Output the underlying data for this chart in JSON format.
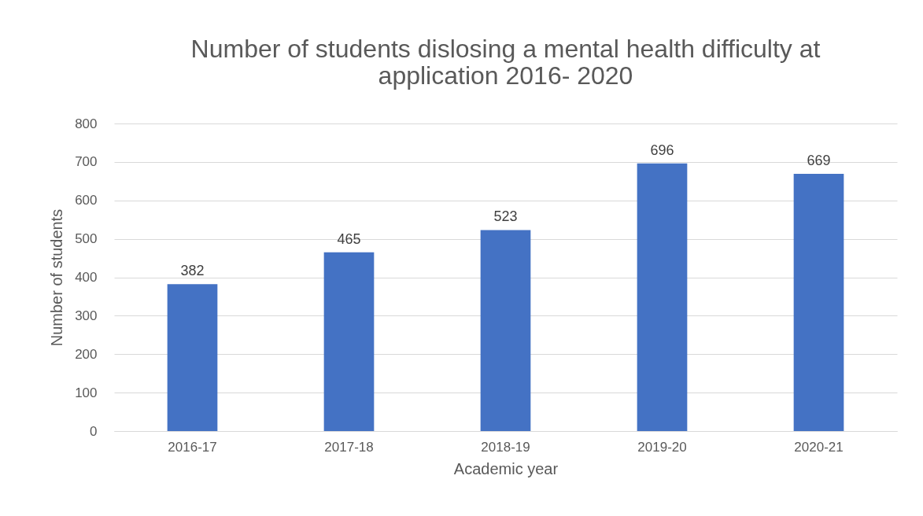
{
  "chart_data": {
    "type": "bar",
    "title": "Number of students dislosing a mental health difficulty at application 2016- 2020",
    "xlabel": "Academic year",
    "ylabel": "Number of students",
    "categories": [
      "2016-17",
      "2017-18",
      "2018-19",
      "2019-20",
      "2020-21"
    ],
    "values": [
      382,
      465,
      523,
      696,
      669
    ],
    "color": "#4472c4",
    "ylim": [
      0,
      800
    ],
    "yticks": [
      0,
      100,
      200,
      300,
      400,
      500,
      600,
      700,
      800
    ],
    "grid": "y",
    "data_labels": true
  }
}
